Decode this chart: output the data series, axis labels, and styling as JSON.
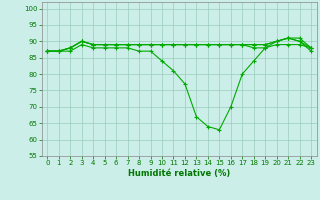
{
  "xlabel": "Humidité relative (%)",
  "background_color": "#cceee8",
  "grid_color": "#99ccbb",
  "line_color": "#00aa00",
  "ylim": [
    55,
    102
  ],
  "xlim": [
    -0.5,
    23.5
  ],
  "yticks": [
    55,
    60,
    65,
    70,
    75,
    80,
    85,
    90,
    95,
    100
  ],
  "xticks": [
    0,
    1,
    2,
    3,
    4,
    5,
    6,
    7,
    8,
    9,
    10,
    11,
    12,
    13,
    14,
    15,
    16,
    17,
    18,
    19,
    20,
    21,
    22,
    23
  ],
  "series": [
    [
      87,
      87,
      87,
      89,
      88,
      88,
      88,
      88,
      87,
      87,
      84,
      81,
      77,
      67,
      64,
      63,
      70,
      80,
      84,
      88,
      90,
      91,
      90,
      87
    ],
    [
      87,
      87,
      88,
      90,
      89,
      89,
      89,
      89,
      89,
      89,
      89,
      89,
      89,
      89,
      89,
      89,
      89,
      89,
      88,
      88,
      89,
      89,
      89,
      88
    ],
    [
      87,
      87,
      88,
      90,
      89,
      89,
      89,
      89,
      89,
      89,
      89,
      89,
      89,
      89,
      89,
      89,
      89,
      89,
      89,
      89,
      90,
      91,
      90,
      88
    ],
    [
      87,
      87,
      88,
      90,
      89,
      89,
      89,
      89,
      89,
      89,
      89,
      89,
      89,
      89,
      89,
      89,
      89,
      89,
      89,
      89,
      90,
      91,
      91,
      88
    ]
  ]
}
